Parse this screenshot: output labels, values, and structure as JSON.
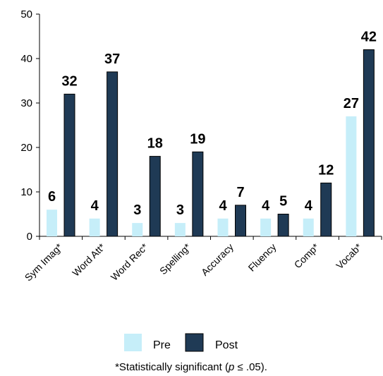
{
  "chart_data": {
    "type": "bar",
    "categories": [
      "Sym Imag*",
      "Word Att*",
      "Word Rec*",
      "Spelling*",
      "Accuracy",
      "Fluency",
      "Comp*",
      "Vocab*"
    ],
    "series": [
      {
        "name": "Pre",
        "values": [
          6,
          4,
          3,
          3,
          4,
          4,
          4,
          27
        ],
        "color": "#c6eef9"
      },
      {
        "name": "Post",
        "values": [
          32,
          37,
          18,
          19,
          7,
          5,
          12,
          42
        ],
        "color": "#1f3a55"
      }
    ],
    "ylim": [
      0,
      50
    ],
    "yticks": [
      0,
      10,
      20,
      30,
      40,
      50
    ],
    "grid": false,
    "legend_position": "bottom",
    "data_labels": true,
    "footnote": {
      "prefix": "*Statistically significant (",
      "italic": "p",
      "suffix": " ≤ .05)."
    }
  }
}
